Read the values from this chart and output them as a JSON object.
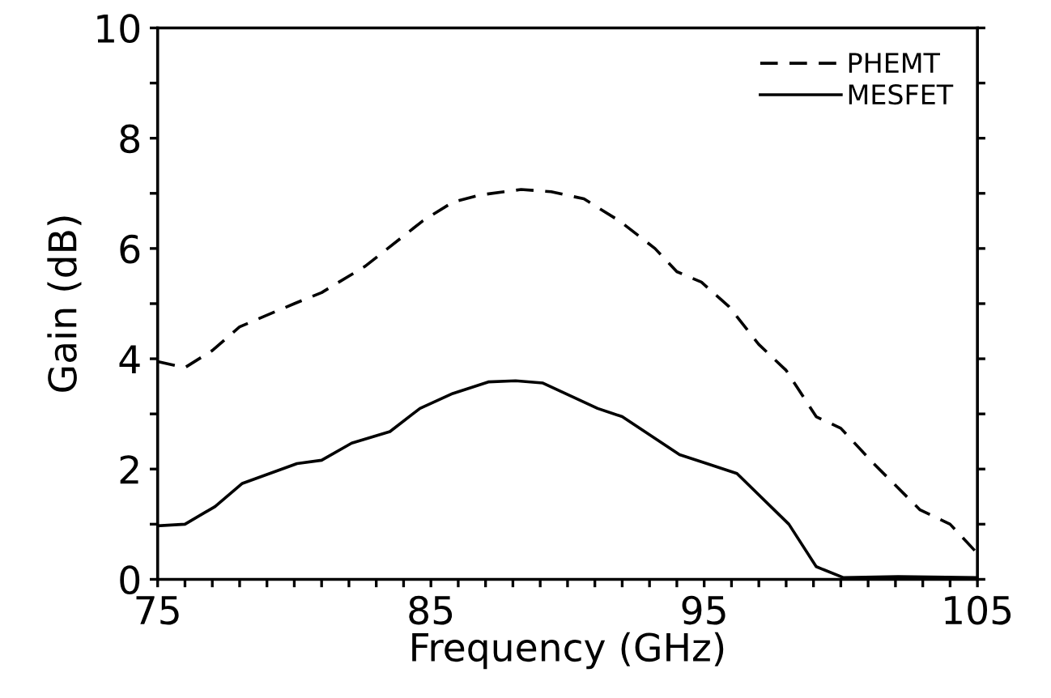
{
  "chart_data": {
    "type": "line",
    "xlabel": "Frequency (GHz)",
    "ylabel": "Gain (dB)",
    "xlim": [
      75,
      105
    ],
    "ylim": [
      0,
      10
    ],
    "xticks": [
      75,
      {
        "value": 76,
        "label": null
      },
      {
        "value": 77,
        "label": null
      },
      {
        "value": 78,
        "label": null
      },
      {
        "value": 79,
        "label": null
      },
      {
        "value": 80,
        "label": null
      },
      {
        "value": 81,
        "label": null
      },
      {
        "value": 82,
        "label": null
      },
      {
        "value": 83,
        "label": null
      },
      {
        "value": 84,
        "label": null
      },
      85,
      {
        "value": 86,
        "label": null
      },
      {
        "value": 87,
        "label": null
      },
      {
        "value": 88,
        "label": null
      },
      {
        "value": 89,
        "label": null
      },
      {
        "value": 90,
        "label": null
      },
      {
        "value": 91,
        "label": null
      },
      {
        "value": 92,
        "label": null
      },
      {
        "value": 93,
        "label": null
      },
      {
        "value": 94,
        "label": null
      },
      95,
      {
        "value": 96,
        "label": null
      },
      {
        "value": 97,
        "label": null
      },
      {
        "value": 98,
        "label": null
      },
      {
        "value": 99,
        "label": null
      },
      {
        "value": 100,
        "label": null
      },
      {
        "value": 101,
        "label": null
      },
      {
        "value": 102,
        "label": null
      },
      {
        "value": 103,
        "label": null
      },
      {
        "value": 104,
        "label": null
      },
      105
    ],
    "yticks": [
      0,
      {
        "value": 1,
        "label": null
      },
      2,
      {
        "value": 3,
        "label": null
      },
      4,
      {
        "value": 5,
        "label": null
      },
      6,
      {
        "value": 7,
        "label": null
      },
      8,
      {
        "value": 9,
        "label": null
      },
      10
    ],
    "grid": false,
    "legend": "top right",
    "marker": "none",
    "series": [
      {
        "name": "PHEMT",
        "color": "#000000",
        "line_style": "dashed",
        "x": [
          75,
          76,
          77,
          78,
          80,
          81,
          82.6,
          84.7,
          85.8,
          86.8,
          88.3,
          89.4,
          90.6,
          91.9,
          93.2,
          94,
          94.9,
          95.9,
          97,
          98,
          99.1,
          100,
          101.2,
          102.9,
          104,
          105
        ],
        "values": [
          3.95,
          3.84,
          4.15,
          4.58,
          5.0,
          5.2,
          5.68,
          6.5,
          6.84,
          6.97,
          7.07,
          7.03,
          6.9,
          6.5,
          6.0,
          5.58,
          5.39,
          4.95,
          4.26,
          3.79,
          2.95,
          2.74,
          2.1,
          1.26,
          1.0,
          0.47
        ]
      },
      {
        "name": "MESFET",
        "color": "#000000",
        "line_style": "solid",
        "x": [
          75,
          76,
          77.1,
          78.1,
          80.1,
          81,
          82.1,
          83.5,
          84.6,
          85.8,
          87.1,
          88.1,
          89.1,
          91.1,
          92,
          94.1,
          95.1,
          96.2,
          98.1,
          99.1,
          100.1,
          102.1,
          105
        ],
        "values": [
          0.97,
          1.0,
          1.32,
          1.74,
          2.1,
          2.16,
          2.47,
          2.68,
          3.1,
          3.37,
          3.58,
          3.6,
          3.56,
          3.1,
          2.95,
          2.26,
          2.1,
          1.92,
          1.0,
          0.23,
          0.03,
          0.05,
          0.03
        ]
      }
    ]
  }
}
